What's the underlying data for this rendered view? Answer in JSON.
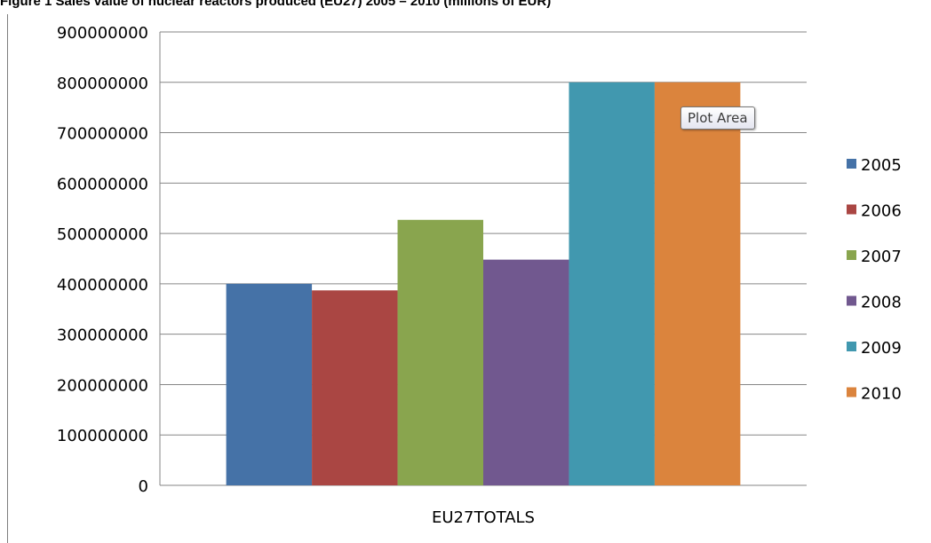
{
  "figure_title": "Figure 1 Sales value of nuclear reactors produced (EU27) 2005 – 2010 (millions of EUR)",
  "tooltip": "Plot Area",
  "chart_data": {
    "type": "bar",
    "title": "",
    "xlabel": "",
    "ylabel": "",
    "categories": [
      "EU27TOTALS"
    ],
    "ylim": [
      0,
      900000000
    ],
    "yticks": [
      "0",
      "100000000",
      "200000000",
      "300000000",
      "400000000",
      "500000000",
      "600000000",
      "700000000",
      "800000000",
      "900000000"
    ],
    "grid": true,
    "legend_position": "right",
    "series": [
      {
        "name": "2005",
        "values": [
          400000000
        ],
        "color": "#4572A7"
      },
      {
        "name": "2006",
        "values": [
          387000000
        ],
        "color": "#AA4643"
      },
      {
        "name": "2007",
        "values": [
          527000000
        ],
        "color": "#89A54E"
      },
      {
        "name": "2008",
        "values": [
          448000000
        ],
        "color": "#71588F"
      },
      {
        "name": "2009",
        "values": [
          800000000
        ],
        "color": "#4198AF"
      },
      {
        "name": "2010",
        "values": [
          800000000
        ],
        "color": "#DB843D"
      }
    ]
  }
}
